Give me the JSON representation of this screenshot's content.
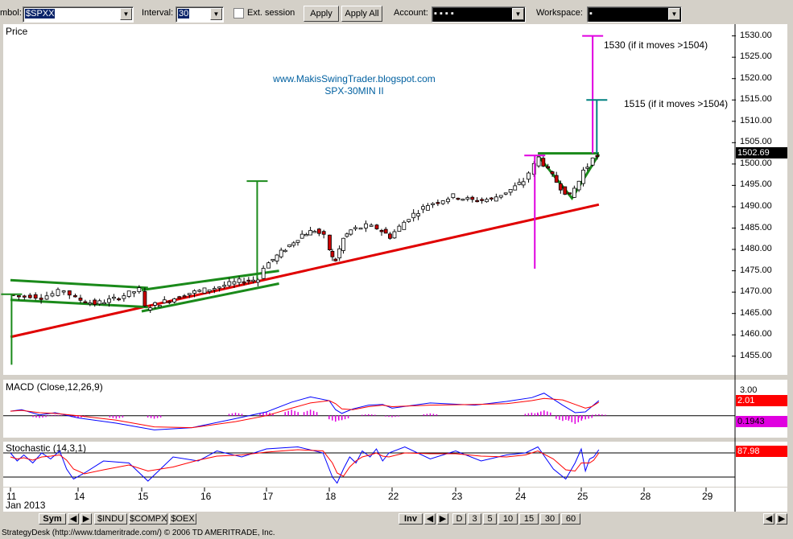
{
  "toolbar": {
    "symbol_label": "mbol:",
    "symbol_value": "$SPXX",
    "interval_label": "Interval:",
    "interval_value": "30",
    "ext_session_label": "Ext. session",
    "apply_label": "Apply",
    "apply_all_label": "Apply All",
    "account_label": "Account:",
    "account_value": "▪   ▪   ▪   ▪",
    "workspace_label": "Workspace:",
    "workspace_value": "▪"
  },
  "colors": {
    "price_line": "#008080",
    "candle_up": "#ffffff",
    "candle_down": "#cc0000",
    "trendline_red": "#e00000",
    "channel_green": "#1a8a1a",
    "target_magenta": "#e000e0",
    "target_teal": "#008080",
    "macd_line": "#0000ff",
    "signal_line": "#ff0000",
    "histogram": "#e000e0",
    "watermark": "#0060a0"
  },
  "chart_data": [
    {
      "type": "candlestick",
      "title": "Price",
      "annotations": [
        "www.MakisSwingTrader.blogspot.com",
        "SPX-30MIN II",
        "1530 (if it moves >1504)",
        "1515 (if it moves >1504)"
      ],
      "y_ticks": [
        "1530.00",
        "1525.00",
        "1520.00",
        "1515.00",
        "1510.00",
        "1505.00",
        "1500.00",
        "1495.00",
        "1490.00",
        "1485.00",
        "1480.00",
        "1475.00",
        "1470.00",
        "1465.00",
        "1460.00",
        "1455.00"
      ],
      "ylim": [
        1451,
        1532
      ],
      "last_price": "1502.69",
      "close_path": [
        [
          11.0,
          1469.5
        ],
        [
          11.5,
          1469.0
        ],
        [
          12.0,
          1469.2
        ],
        [
          12.5,
          1468.8
        ],
        [
          13.0,
          1469.6
        ],
        [
          13.5,
          1470.5
        ],
        [
          14.0,
          1468.5
        ],
        [
          14.3,
          1467.3
        ],
        [
          14.6,
          1468.4
        ],
        [
          15.0,
          1470.6
        ],
        [
          15.1,
          1466.4
        ],
        [
          15.4,
          1467.8
        ],
        [
          15.8,
          1469.8
        ],
        [
          16.2,
          1471.0
        ],
        [
          16.6,
          1472.5
        ],
        [
          16.9,
          1473.0
        ],
        [
          17.0,
          1476.0
        ],
        [
          17.2,
          1478.5
        ],
        [
          17.4,
          1481.0
        ],
        [
          17.6,
          1483.5
        ],
        [
          17.8,
          1484.5
        ],
        [
          17.95,
          1483.0
        ],
        [
          18.1,
          1480.0
        ],
        [
          18.3,
          1478.0
        ],
        [
          18.5,
          1477.5
        ],
        [
          18.8,
          1480.0
        ],
        [
          19.0,
          1482.5
        ],
        [
          19.5,
          1484.5
        ],
        [
          20.5,
          1485.5
        ],
        [
          21.2,
          1485.0
        ],
        [
          22.0,
          1483.0
        ],
        [
          22.3,
          1487.5
        ],
        [
          22.6,
          1490.5
        ],
        [
          23.0,
          1492.5
        ],
        [
          23.3,
          1491.5
        ],
        [
          23.6,
          1491.8
        ],
        [
          23.9,
          1494.0
        ],
        [
          24.1,
          1496.0
        ],
        [
          24.2,
          1498.0
        ],
        [
          24.35,
          1501.5
        ],
        [
          24.5,
          1498.5
        ],
        [
          24.7,
          1494.5
        ],
        [
          24.85,
          1492.5
        ],
        [
          25.0,
          1496.0
        ],
        [
          25.2,
          1498.5
        ],
        [
          25.4,
          1499.5
        ],
        [
          25.7,
          1502.0
        ],
        [
          25.85,
          1501.5
        ]
      ],
      "channels": [
        {
          "name": "bear-flag-channel",
          "upper": [
            [
              11.0,
              1472.8
            ],
            [
              15.1,
              1471.0
            ]
          ],
          "lower": [
            [
              11.0,
              1468.2
            ],
            [
              15.1,
              1466.5
            ]
          ]
        },
        {
          "name": "rising-channel",
          "upper": [
            [
              15.0,
              1470.5
            ],
            [
              17.2,
              1475.0
            ]
          ],
          "lower": [
            [
              15.0,
              1465.5
            ],
            [
              17.2,
              1472.0
            ]
          ]
        },
        {
          "name": "triangle",
          "upper": [
            [
              24.3,
              1502.5
            ],
            [
              25.85,
              1502.5
            ]
          ],
          "lower": [
            [
              24.3,
              1502.0
            ],
            [
              24.85,
              1492.0
            ],
            [
              25.85,
              1502.3
            ]
          ]
        }
      ],
      "support_line": [
        [
          11.0,
          1459.5
        ],
        [
          25.85,
          1490.5
        ]
      ],
      "targets": [
        {
          "label": "1530 (if it moves >1504)",
          "x": 25.55,
          "from": 1502.5,
          "to": 1530.0
        },
        {
          "label": "1515 (if it moves >1504)",
          "x": 25.75,
          "from": 1502.5,
          "to": 1515.0
        },
        {
          "label": "",
          "x": 16.85,
          "from": 1473.0,
          "to": 1496.0
        },
        {
          "label": "",
          "x": 11.05,
          "from": 1453.0,
          "to": 1469.5
        },
        {
          "label": "",
          "x": 24.25,
          "from": 1475.5,
          "to": 1502.0
        }
      ]
    },
    {
      "type": "line",
      "title": "MACD (Close,12,26,9)",
      "y_ticks": [
        "3.00"
      ],
      "ylim": [
        -2.5,
        3.4
      ],
      "macd_value": "2.01",
      "histogram_value": "0.1943",
      "series": [
        {
          "name": "MACD",
          "points": [
            [
              11.0,
              0.6
            ],
            [
              11.5,
              0.8
            ],
            [
              12.3,
              0.1
            ],
            [
              13.0,
              0.4
            ],
            [
              14.0,
              -0.3
            ],
            [
              14.6,
              -1.0
            ],
            [
              15.2,
              -1.9
            ],
            [
              15.8,
              -1.6
            ],
            [
              16.5,
              -0.4
            ],
            [
              17.0,
              0.5
            ],
            [
              17.4,
              1.8
            ],
            [
              17.7,
              2.5
            ],
            [
              18.0,
              2.0
            ],
            [
              18.4,
              0.8
            ],
            [
              18.8,
              0.3
            ],
            [
              19.5,
              0.9
            ],
            [
              20.5,
              1.4
            ],
            [
              21.4,
              1.5
            ],
            [
              22.0,
              1.0
            ],
            [
              22.6,
              1.7
            ],
            [
              23.3,
              1.4
            ],
            [
              23.8,
              1.9
            ],
            [
              24.2,
              2.4
            ],
            [
              24.4,
              3.0
            ],
            [
              24.7,
              1.4
            ],
            [
              24.9,
              0.4
            ],
            [
              25.2,
              0.5
            ],
            [
              25.5,
              1.2
            ],
            [
              25.85,
              2.0
            ]
          ]
        },
        {
          "name": "Signal",
          "points": [
            [
              11.0,
              0.6
            ],
            [
              11.5,
              0.7
            ],
            [
              12.3,
              0.4
            ],
            [
              13.0,
              0.3
            ],
            [
              14.0,
              0.0
            ],
            [
              14.6,
              -0.6
            ],
            [
              15.2,
              -1.5
            ],
            [
              15.8,
              -1.6
            ],
            [
              16.5,
              -0.8
            ],
            [
              17.0,
              0.0
            ],
            [
              17.4,
              1.0
            ],
            [
              17.7,
              1.7
            ],
            [
              18.0,
              2.0
            ],
            [
              18.4,
              1.6
            ],
            [
              18.8,
              0.9
            ],
            [
              19.5,
              0.8
            ],
            [
              20.5,
              1.2
            ],
            [
              21.4,
              1.4
            ],
            [
              22.0,
              1.2
            ],
            [
              22.6,
              1.4
            ],
            [
              23.3,
              1.5
            ],
            [
              23.8,
              1.6
            ],
            [
              24.2,
              2.0
            ],
            [
              24.4,
              2.3
            ],
            [
              24.7,
              2.1
            ],
            [
              24.9,
              1.5
            ],
            [
              25.2,
              1.0
            ],
            [
              25.5,
              1.2
            ],
            [
              25.85,
              1.8
            ]
          ]
        }
      ],
      "histogram": [
        [
          11.0,
          0.0
        ],
        [
          12.3,
          -0.3
        ],
        [
          13.0,
          0.1
        ],
        [
          14.0,
          -0.3
        ],
        [
          14.6,
          -0.4
        ],
        [
          15.2,
          -0.4
        ],
        [
          16.5,
          0.4
        ],
        [
          17.0,
          0.5
        ],
        [
          17.4,
          0.8
        ],
        [
          17.7,
          0.8
        ],
        [
          18.4,
          -0.8
        ],
        [
          18.8,
          -0.6
        ],
        [
          20.5,
          0.2
        ],
        [
          22.0,
          -0.2
        ],
        [
          22.6,
          0.3
        ],
        [
          24.2,
          0.4
        ],
        [
          24.4,
          0.7
        ],
        [
          24.7,
          -0.7
        ],
        [
          24.9,
          -1.1
        ],
        [
          25.2,
          -0.5
        ],
        [
          25.85,
          0.2
        ]
      ]
    },
    {
      "type": "line",
      "title": "Stochastic (14,3,1)",
      "ylim": [
        0,
        100
      ],
      "levels": [
        80,
        20
      ],
      "value": "87.98",
      "series": [
        {
          "name": "%K",
          "points": [
            [
              11.0,
              80
            ],
            [
              11.3,
              60
            ],
            [
              11.6,
              75
            ],
            [
              12.0,
              55
            ],
            [
              12.4,
              80
            ],
            [
              12.8,
              65
            ],
            [
              13.2,
              85
            ],
            [
              13.5,
              40
            ],
            [
              13.8,
              15
            ],
            [
              14.1,
              30
            ],
            [
              14.4,
              60
            ],
            [
              14.8,
              55
            ],
            [
              15.1,
              10
            ],
            [
              15.5,
              70
            ],
            [
              15.9,
              60
            ],
            [
              16.2,
              85
            ],
            [
              16.6,
              70
            ],
            [
              17.0,
              90
            ],
            [
              17.5,
              95
            ],
            [
              17.9,
              80
            ],
            [
              18.2,
              20
            ],
            [
              18.5,
              5
            ],
            [
              18.9,
              40
            ],
            [
              19.3,
              70
            ],
            [
              19.7,
              55
            ],
            [
              20.1,
              85
            ],
            [
              20.6,
              70
            ],
            [
              21.0,
              90
            ],
            [
              21.4,
              60
            ],
            [
              21.8,
              80
            ],
            [
              22.2,
              95
            ],
            [
              22.6,
              65
            ],
            [
              23.0,
              85
            ],
            [
              23.4,
              60
            ],
            [
              23.8,
              75
            ],
            [
              24.1,
              80
            ],
            [
              24.3,
              95
            ],
            [
              24.55,
              40
            ],
            [
              24.75,
              15
            ],
            [
              24.9,
              55
            ],
            [
              25.0,
              90
            ],
            [
              25.2,
              35
            ],
            [
              25.4,
              65
            ],
            [
              25.6,
              70
            ],
            [
              25.85,
              88
            ]
          ]
        },
        {
          "name": "%D",
          "points": [
            [
              11.0,
              70
            ],
            [
              11.3,
              65
            ],
            [
              11.6,
              68
            ],
            [
              12.0,
              62
            ],
            [
              12.4,
              70
            ],
            [
              12.8,
              72
            ],
            [
              13.2,
              75
            ],
            [
              13.5,
              62
            ],
            [
              13.8,
              40
            ],
            [
              14.1,
              28
            ],
            [
              14.4,
              38
            ],
            [
              14.8,
              50
            ],
            [
              15.1,
              35
            ],
            [
              15.5,
              45
            ],
            [
              15.9,
              62
            ],
            [
              16.2,
              72
            ],
            [
              16.6,
              75
            ],
            [
              17.0,
              82
            ],
            [
              17.5,
              88
            ],
            [
              17.9,
              85
            ],
            [
              18.2,
              55
            ],
            [
              18.5,
              30
            ],
            [
              18.9,
              22
            ],
            [
              19.3,
              45
            ],
            [
              19.7,
              60
            ],
            [
              20.1,
              70
            ],
            [
              20.6,
              75
            ],
            [
              21.0,
              80
            ],
            [
              21.4,
              72
            ],
            [
              21.8,
              70
            ],
            [
              22.2,
              80
            ],
            [
              22.6,
              78
            ],
            [
              23.0,
              78
            ],
            [
              23.4,
              72
            ],
            [
              23.8,
              70
            ],
            [
              24.1,
              75
            ],
            [
              24.3,
              85
            ],
            [
              24.55,
              65
            ],
            [
              24.75,
              38
            ],
            [
              24.9,
              35
            ],
            [
              25.0,
              55
            ],
            [
              25.2,
              55
            ],
            [
              25.4,
              55
            ],
            [
              25.6,
              62
            ],
            [
              25.85,
              80
            ]
          ]
        }
      ]
    }
  ],
  "x_axis": {
    "labels": [
      {
        "x": 11,
        "text": "11"
      },
      {
        "x": 14,
        "text": "14"
      },
      {
        "x": 15,
        "text": "15"
      },
      {
        "x": 16,
        "text": "16"
      },
      {
        "x": 17,
        "text": "17"
      },
      {
        "x": 18,
        "text": "18"
      },
      {
        "x": 22,
        "text": "22"
      },
      {
        "x": 23,
        "text": "23"
      },
      {
        "x": 24,
        "text": "24"
      },
      {
        "x": 25,
        "text": "25"
      },
      {
        "x": 28,
        "text": "28"
      },
      {
        "x": 29,
        "text": "29"
      }
    ],
    "month_label": "Jan 2013"
  },
  "bottom_tabs": {
    "sym_label": "Sym",
    "symbols": [
      "$INDU",
      "$COMPX",
      "$OEX"
    ],
    "inv_label": "Inv",
    "intervals": [
      "D",
      "3",
      "5",
      "10",
      "15",
      "30",
      "60"
    ]
  },
  "status_text": "StrategyDesk (http://www.tdameritrade.com/) © 2006 TD AMERITRADE, Inc."
}
